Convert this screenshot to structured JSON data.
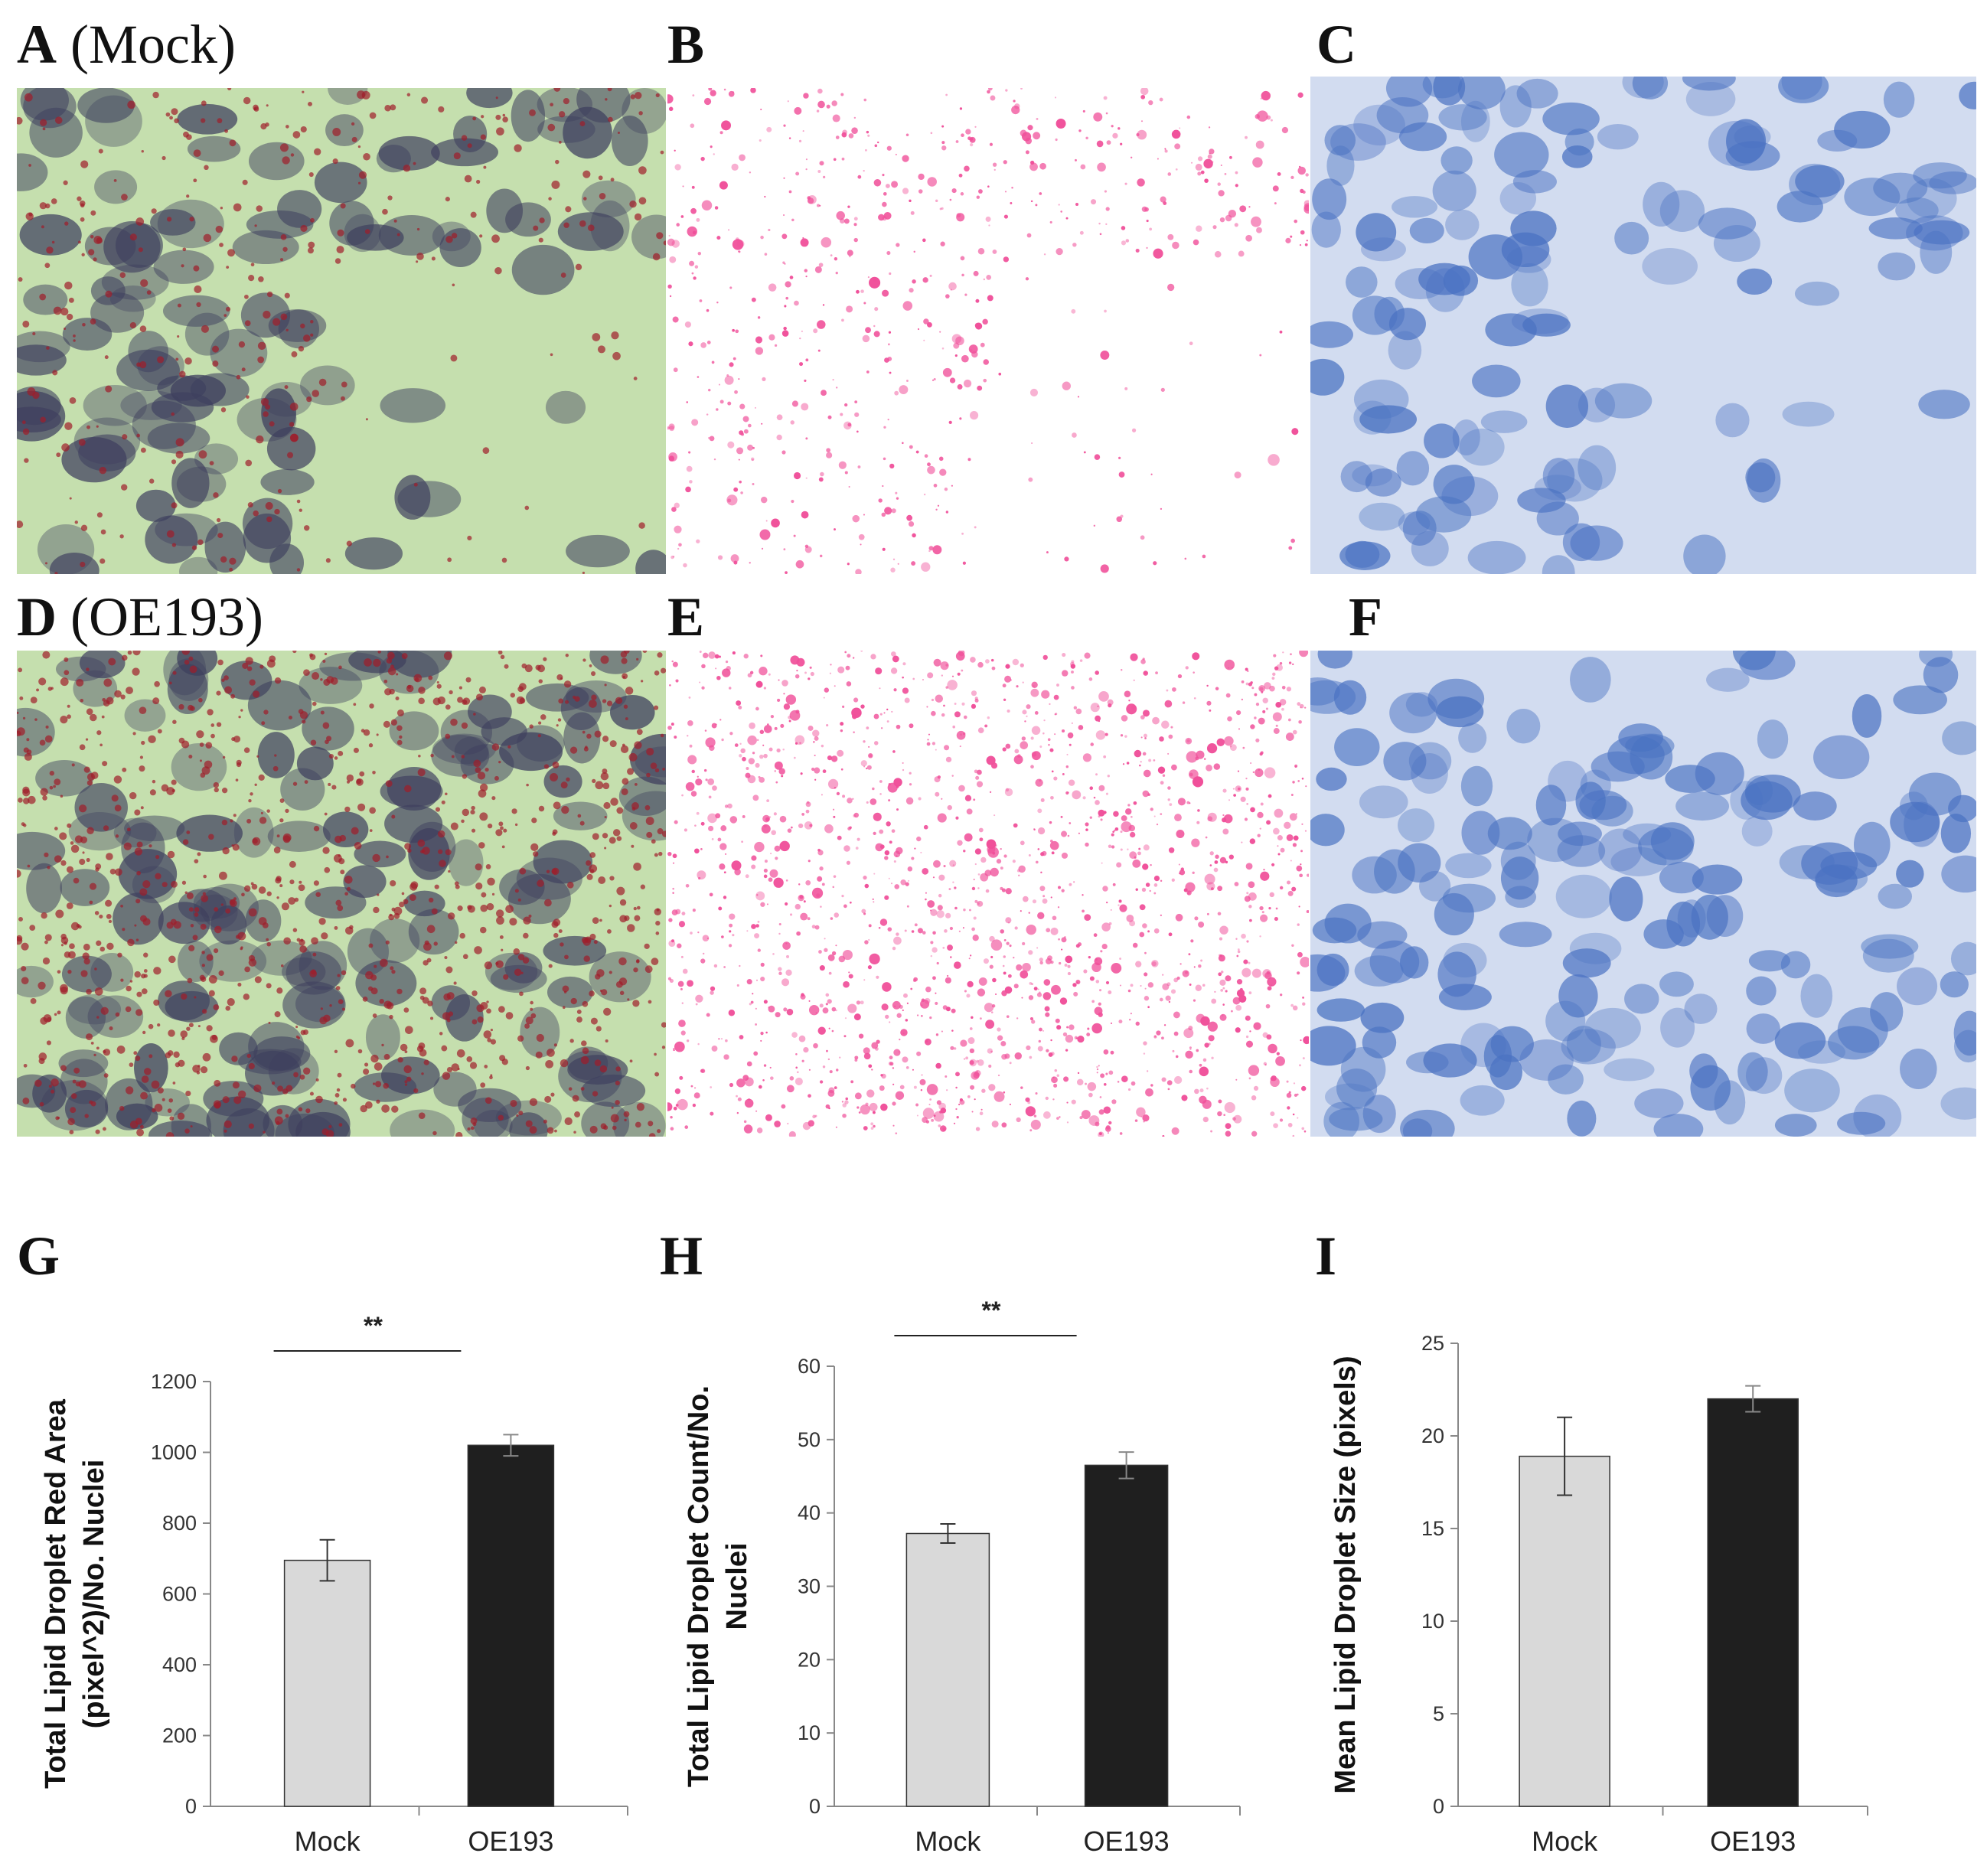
{
  "figure": {
    "panels": [
      {
        "letter": "A",
        "caption": "(Mock)"
      },
      {
        "letter": "B",
        "caption": ""
      },
      {
        "letter": "C",
        "caption": ""
      },
      {
        "letter": "D",
        "caption": "(OE193)"
      },
      {
        "letter": "E",
        "caption": ""
      },
      {
        "letter": "F",
        "caption": ""
      }
    ],
    "chart_letters": [
      "G",
      "H",
      "I"
    ]
  },
  "colors": {
    "brightfield_bg": "#c5dfae",
    "cell_dark": "#3e3f5e",
    "droplet_red": "#a01c2a",
    "mask_pink": "#f0509a",
    "blue_bg": "#d2dcf0",
    "blue_cell": "#4a72c2",
    "bar_mock": "#d9d9d9",
    "bar_oe193": "#1f1f1f"
  },
  "chart_data": [
    {
      "type": "bar",
      "categories": [
        "Mock",
        "OE193"
      ],
      "values": [
        695,
        1020
      ],
      "errors": [
        58,
        30
      ],
      "ylabel": "Total Lipid Droplet Red Area (pixel^2)/No. Nuclei",
      "ylim": [
        0,
        1200
      ],
      "yticks": [
        0,
        200,
        400,
        600,
        800,
        1000,
        1200
      ],
      "significance": "**",
      "grid": false
    },
    {
      "type": "bar",
      "categories": [
        "Mock",
        "OE193"
      ],
      "values": [
        37.2,
        46.5
      ],
      "errors": [
        1.3,
        1.8
      ],
      "ylabel": "Total Lipid Droplet Count/No. Nuclei",
      "ylim": [
        0,
        60
      ],
      "yticks": [
        0,
        10,
        20,
        30,
        40,
        50,
        60
      ],
      "significance": "**",
      "grid": false
    },
    {
      "type": "bar",
      "categories": [
        "Mock",
        "OE193"
      ],
      "values": [
        18.9,
        22.0
      ],
      "errors": [
        2.1,
        0.7
      ],
      "ylabel": "Mean Lipid Droplet Size (pixels)",
      "ylim": [
        0,
        25
      ],
      "yticks": [
        0,
        5,
        10,
        15,
        20,
        25
      ],
      "significance": "",
      "grid": false
    }
  ]
}
